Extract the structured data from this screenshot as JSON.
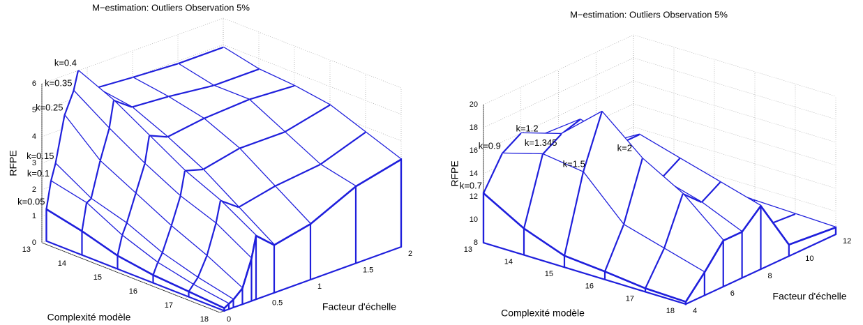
{
  "chart_data": [
    {
      "type": "waterfall",
      "title": "M−estimation: Outliers Observation 5%",
      "xlabel": "Complexité modèle",
      "ylabel": "Facteur d'échelle",
      "zlabel": "RFPE",
      "color": "#1f1fdc",
      "x": [
        13,
        14,
        15,
        16,
        17,
        18
      ],
      "xlim": [
        13,
        18
      ],
      "xticks": [
        13,
        14,
        15,
        16,
        17,
        18
      ],
      "ylim": [
        0,
        2
      ],
      "yticks": [
        0,
        0.5,
        1,
        1.5,
        2
      ],
      "zlim": [
        0,
        6
      ],
      "zticks": [
        0,
        1,
        2,
        3,
        4,
        5,
        6
      ],
      "grid": true,
      "series": [
        {
          "name": "k=0.05",
          "y": 0.05,
          "values": [
            1.2,
            0.9,
            0.5,
            0.3,
            0.2,
            0.1
          ]
        },
        {
          "name": "k=0.1",
          "y": 0.1,
          "values": [
            2.2,
            1.9,
            1.2,
            0.7,
            0.4,
            0.2
          ]
        },
        {
          "name": "k=0.15",
          "y": 0.15,
          "values": [
            2.8,
            2.0,
            1.6,
            1.0,
            0.6,
            0.3
          ]
        },
        {
          "name": "k=0.25",
          "y": 0.25,
          "values": [
            4.5,
            3.3,
            2.6,
            1.9,
            1.3,
            0.6
          ]
        },
        {
          "name": "k=0.35",
          "y": 0.35,
          "values": [
            5.3,
            4.4,
            3.6,
            2.9,
            2.4,
            1.6
          ]
        },
        {
          "name": "k=0.4",
          "y": 0.4,
          "values": [
            6.0,
            5.4,
            4.6,
            3.8,
            3.2,
            2.4
          ]
        },
        {
          "y": 0.6,
          "values": [
            5.1,
            4.9,
            4.3,
            3.6,
            2.7,
            1.8
          ]
        },
        {
          "y": 1,
          "values": [
            5.0,
            4.8,
            4.5,
            3.9,
            3.0,
            2.1
          ]
        },
        {
          "y": 1.5,
          "values": [
            4.9,
            4.6,
            4.6,
            3.9,
            3.2,
            2.9
          ]
        },
        {
          "y": 2,
          "values": [
            4.9,
            4.6,
            4.5,
            4.3,
            3.8,
            3.3
          ]
        }
      ]
    },
    {
      "type": "waterfall",
      "title": "M−estimation: Outliers Observation 5%",
      "xlabel": "Complexité modèle",
      "ylabel": "Facteur d'échelle",
      "zlabel": "RFPE",
      "color": "#1f1fdc",
      "x": [
        13,
        14,
        15,
        16,
        17,
        18
      ],
      "xlim": [
        13,
        18
      ],
      "xticks": [
        13,
        14,
        15,
        16,
        17,
        18
      ],
      "ylim": [
        4,
        12
      ],
      "yticks": [
        4,
        6,
        8,
        10,
        12
      ],
      "zlim": [
        8,
        20
      ],
      "zticks": [
        8,
        10,
        12,
        14,
        16,
        18,
        20
      ],
      "grid": true,
      "series": [
        {
          "name": "k=0.7",
          "y": 4,
          "values": [
            12.3,
            10.3,
            9.0,
            8.7,
            8.3,
            8.2
          ]
        },
        {
          "name": "k=0.9",
          "y": 5,
          "values": [
            15,
            16,
            15.5,
            12,
            11,
            10
          ]
        },
        {
          "y": 6,
          "values": [
            16,
            17,
            20,
            17,
            15,
            12
          ]
        },
        {
          "name": "k=1.2",
          "y": 7,
          "values": [
            15,
            17.5,
            16.5,
            14.5,
            13.5,
            12
          ]
        },
        {
          "name": "k=1.345",
          "y": 8,
          "values": [
            13,
            14.5,
            16.5,
            15.5,
            14.5,
            13.5
          ]
        },
        {
          "name": "k=1.5",
          "y": 9.5,
          "values": [
            10,
            9.5,
            9.2,
            9,
            9,
            9
          ]
        },
        {
          "name": "k=2",
          "y": 12,
          "values": [
            9.5,
            9.2,
            9,
            8.8,
            8.7,
            8.6
          ]
        }
      ]
    }
  ]
}
